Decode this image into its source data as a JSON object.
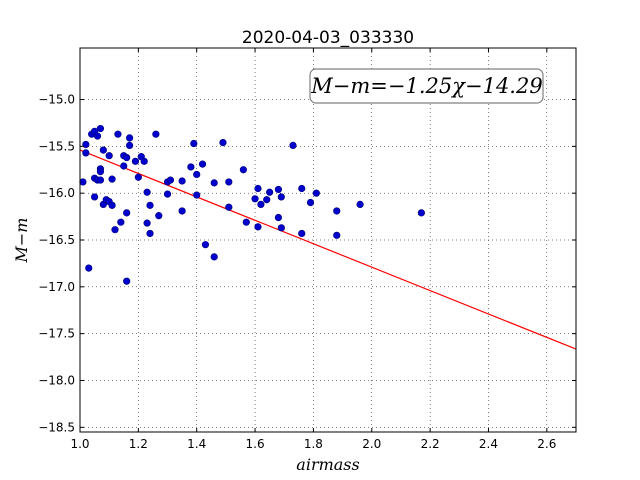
{
  "chart_data": {
    "type": "scatter",
    "title": "2020-04-03_033330",
    "xlabel": "airmass",
    "ylabel": "M−m",
    "xlim": [
      1.0,
      2.7
    ],
    "ylim": [
      -18.55,
      -14.45
    ],
    "y_inverted": true,
    "xticks": [
      1.0,
      1.2,
      1.4,
      1.6,
      1.8,
      2.0,
      2.2,
      2.4,
      2.6
    ],
    "xtick_labels": [
      "1.0",
      "1.2",
      "1.4",
      "1.6",
      "1.8",
      "2.0",
      "2.2",
      "2.4",
      "2.6"
    ],
    "yticks": [
      -15.0,
      -15.5,
      -16.0,
      -16.5,
      -17.0,
      -17.5,
      -18.0,
      -18.5
    ],
    "ytick_labels": [
      "−15.0",
      "−15.5",
      "−16.0",
      "−16.5",
      "−17.0",
      "−17.5",
      "−18.0",
      "−18.5"
    ],
    "grid": true,
    "annotation": "M−m=−1.25χ−14.29",
    "fit": {
      "slope": -1.25,
      "intercept": -14.29,
      "color": "#ff0000"
    },
    "point_color": "#0000cc",
    "points": [
      [
        1.01,
        -15.88
      ],
      [
        1.02,
        -15.48
      ],
      [
        1.02,
        -15.57
      ],
      [
        1.03,
        -16.8
      ],
      [
        1.04,
        -15.37
      ],
      [
        1.05,
        -15.34
      ],
      [
        1.05,
        -15.84
      ],
      [
        1.05,
        -16.04
      ],
      [
        1.06,
        -15.86
      ],
      [
        1.06,
        -15.39
      ],
      [
        1.07,
        -15.31
      ],
      [
        1.07,
        -15.74
      ],
      [
        1.07,
        -15.77
      ],
      [
        1.07,
        -15.86
      ],
      [
        1.08,
        -15.54
      ],
      [
        1.08,
        -16.12
      ],
      [
        1.09,
        -16.07
      ],
      [
        1.1,
        -15.6
      ],
      [
        1.1,
        -16.09
      ],
      [
        1.11,
        -15.85
      ],
      [
        1.11,
        -16.13
      ],
      [
        1.12,
        -16.39
      ],
      [
        1.13,
        -15.37
      ],
      [
        1.14,
        -16.31
      ],
      [
        1.15,
        -15.6
      ],
      [
        1.15,
        -15.71
      ],
      [
        1.16,
        -15.62
      ],
      [
        1.16,
        -16.94
      ],
      [
        1.16,
        -16.21
      ],
      [
        1.17,
        -15.49
      ],
      [
        1.17,
        -15.41
      ],
      [
        1.19,
        -15.66
      ],
      [
        1.2,
        -15.83
      ],
      [
        1.21,
        -15.61
      ],
      [
        1.22,
        -15.66
      ],
      [
        1.23,
        -15.99
      ],
      [
        1.23,
        -16.32
      ],
      [
        1.24,
        -16.13
      ],
      [
        1.24,
        -16.43
      ],
      [
        1.26,
        -15.37
      ],
      [
        1.27,
        -16.24
      ],
      [
        1.3,
        -15.88
      ],
      [
        1.3,
        -16.01
      ],
      [
        1.31,
        -15.86
      ],
      [
        1.35,
        -15.87
      ],
      [
        1.35,
        -16.19
      ],
      [
        1.38,
        -15.72
      ],
      [
        1.39,
        -15.47
      ],
      [
        1.4,
        -15.8
      ],
      [
        1.4,
        -16.02
      ],
      [
        1.42,
        -15.69
      ],
      [
        1.43,
        -16.55
      ],
      [
        1.46,
        -15.89
      ],
      [
        1.46,
        -16.68
      ],
      [
        1.49,
        -15.46
      ],
      [
        1.51,
        -15.88
      ],
      [
        1.51,
        -16.15
      ],
      [
        1.56,
        -15.75
      ],
      [
        1.57,
        -16.31
      ],
      [
        1.6,
        -16.06
      ],
      [
        1.61,
        -16.36
      ],
      [
        1.61,
        -15.95
      ],
      [
        1.62,
        -16.12
      ],
      [
        1.64,
        -16.07
      ],
      [
        1.65,
        -15.99
      ],
      [
        1.68,
        -16.26
      ],
      [
        1.68,
        -15.96
      ],
      [
        1.69,
        -16.04
      ],
      [
        1.69,
        -16.37
      ],
      [
        1.73,
        -15.49
      ],
      [
        1.76,
        -16.43
      ],
      [
        1.76,
        -15.95
      ],
      [
        1.79,
        -16.1
      ],
      [
        1.81,
        -16.0
      ],
      [
        1.88,
        -16.19
      ],
      [
        1.88,
        -16.45
      ],
      [
        1.96,
        -16.12
      ],
      [
        2.17,
        -16.21
      ]
    ]
  }
}
